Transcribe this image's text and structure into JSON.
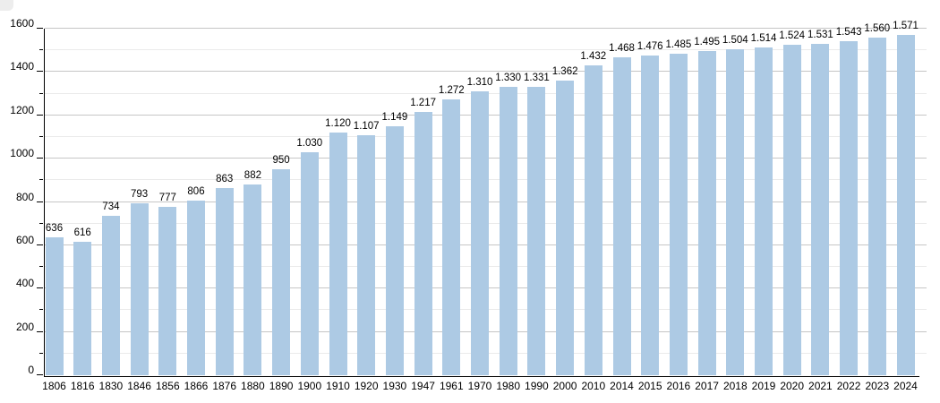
{
  "page": {
    "background": "#ffffff"
  },
  "chart_data": {
    "type": "bar",
    "title": "",
    "xlabel": "",
    "ylabel": "",
    "categories": [
      "1806",
      "1816",
      "1830",
      "1846",
      "1856",
      "1866",
      "1876",
      "1880",
      "1890",
      "1900",
      "1910",
      "1920",
      "1930",
      "1947",
      "1961",
      "1970",
      "1980",
      "1990",
      "2000",
      "2010",
      "2014",
      "2015",
      "2016",
      "2017",
      "2018",
      "2019",
      "2020",
      "2021",
      "2022",
      "2023",
      "2024"
    ],
    "values": [
      636,
      616,
      734,
      793,
      777,
      806,
      863,
      882,
      950,
      1030,
      1120,
      1107,
      1149,
      1217,
      1272,
      1310,
      1330,
      1331,
      1362,
      1432,
      1468,
      1476,
      1485,
      1495,
      1504,
      1514,
      1524,
      1531,
      1543,
      1560,
      1571
    ],
    "value_labels": [
      "636",
      "616",
      "734",
      "793",
      "777",
      "806",
      "863",
      "882",
      "950",
      "1.030",
      "1.120",
      "1.107",
      "1.149",
      "1.217",
      "1.272",
      "1.310",
      "1.330",
      "1.331",
      "1.362",
      "1.432",
      "1.468",
      "1.476",
      "1.485",
      "1.495",
      "1.504",
      "1.514",
      "1.524",
      "1.531",
      "1.543",
      "1.560",
      "1.571"
    ],
    "ylim": [
      0,
      1600
    ],
    "y_major_step": 200,
    "y_minor_step": 100,
    "y_tick_labels": [
      "0",
      "200",
      "400",
      "600",
      "800",
      "1000",
      "1200",
      "1400",
      "1600"
    ],
    "grid": true,
    "legend_position": "none",
    "colors": {
      "bar": "#adcae4",
      "grid_major": "#c6c6c6",
      "grid_minor": "#eaeaea",
      "axis": "#000000",
      "text": "#000000"
    }
  }
}
